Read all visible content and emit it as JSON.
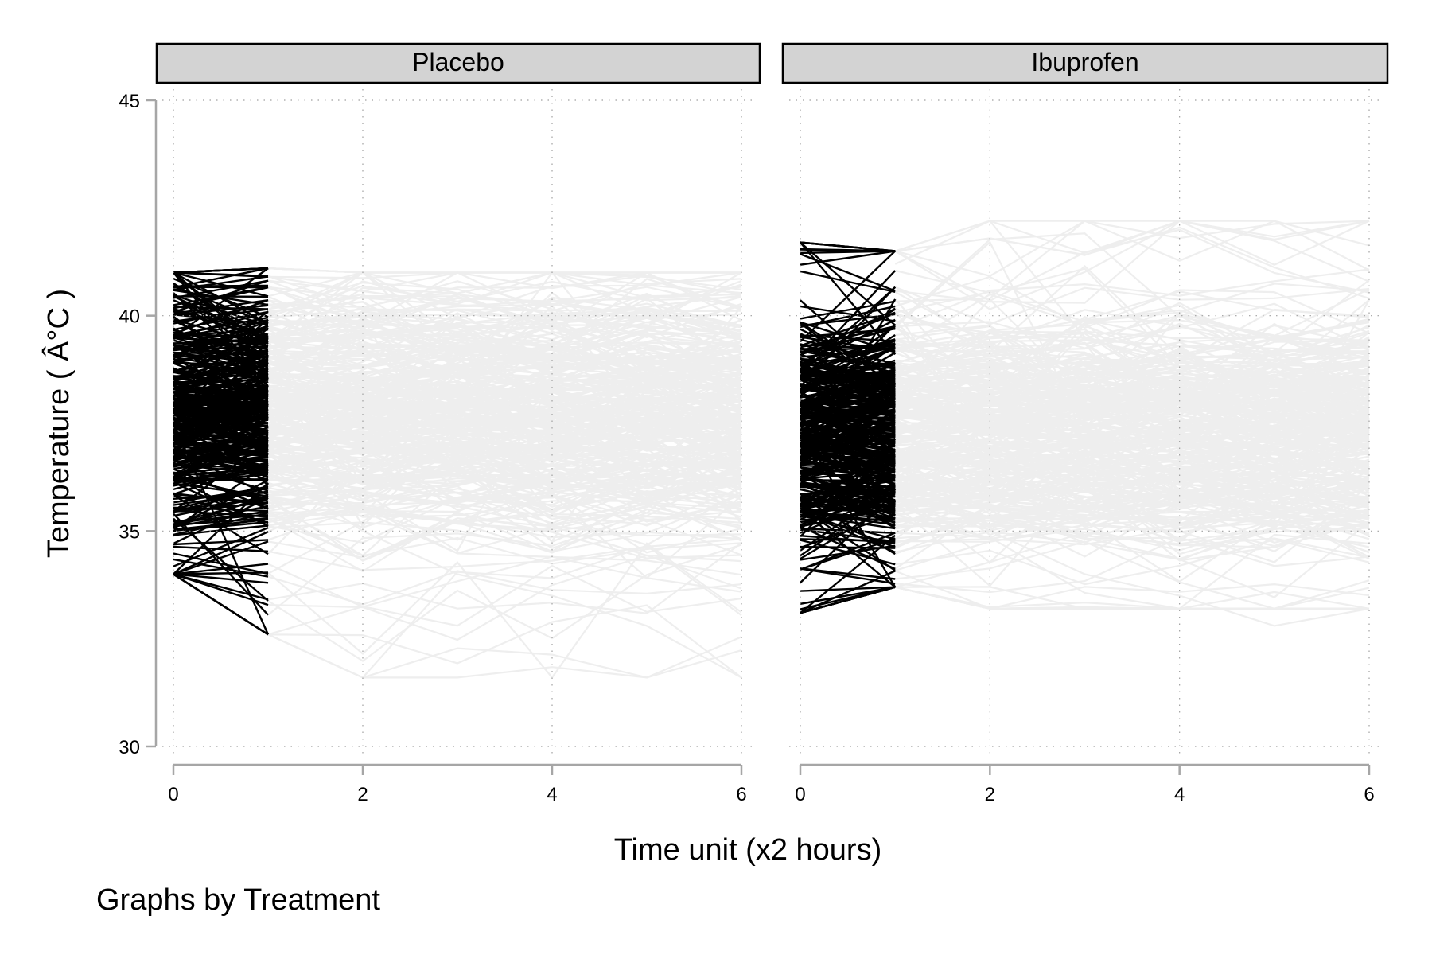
{
  "chart_data": {
    "type": "line",
    "subtype": "spaghetti-plot (individual trajectories), faceted",
    "facet_variable": "Treatment",
    "note": "Graphs by Treatment",
    "xlabel": "Time unit (x2 hours)",
    "ylabel": "Temperature ( Â°C )",
    "xlim": [
      0,
      6
    ],
    "ylim": [
      30,
      45
    ],
    "xticks": [
      0,
      2,
      4,
      6
    ],
    "yticks": [
      30,
      35,
      40,
      45
    ],
    "grid": true,
    "grid_style": "dotted",
    "highlight_color": "#000000",
    "background_series_color": "#eeeeee",
    "panels": [
      {
        "name": "Placebo",
        "highlighted_segment": {
          "x_range": [
            0,
            1
          ],
          "description": "Time 0 to 1 trajectories drawn in black",
          "y_at_x0": {
            "min": 34.0,
            "max": 41.0,
            "dense_band": [
              37.0,
              39.5
            ]
          },
          "y_at_x1": {
            "min": 32.6,
            "max": 41.1,
            "dense_band": [
              37.0,
              39.5
            ]
          }
        },
        "background_segment": {
          "x_range": [
            1,
            6
          ],
          "description": "Time 1 to 6 trajectories drawn in light gray",
          "y_range": [
            31.6,
            41.0
          ],
          "dense_band": [
            36.0,
            39.5
          ]
        }
      },
      {
        "name": "Ibuprofen",
        "highlighted_segment": {
          "x_range": [
            0,
            1
          ],
          "description": "Time 0 to 1 trajectories drawn in black",
          "y_at_x0": {
            "min": 33.1,
            "max": 41.7,
            "dense_band": [
              36.5,
              39.5
            ]
          },
          "y_at_x1": {
            "min": 33.7,
            "max": 41.5,
            "dense_band": [
              36.0,
              39.0
            ]
          }
        },
        "background_segment": {
          "x_range": [
            1,
            6
          ],
          "description": "Time 1 to 6 trajectories drawn in light gray",
          "y_range": [
            33.2,
            42.2
          ],
          "dense_band": [
            35.5,
            39.0
          ]
        }
      }
    ]
  }
}
